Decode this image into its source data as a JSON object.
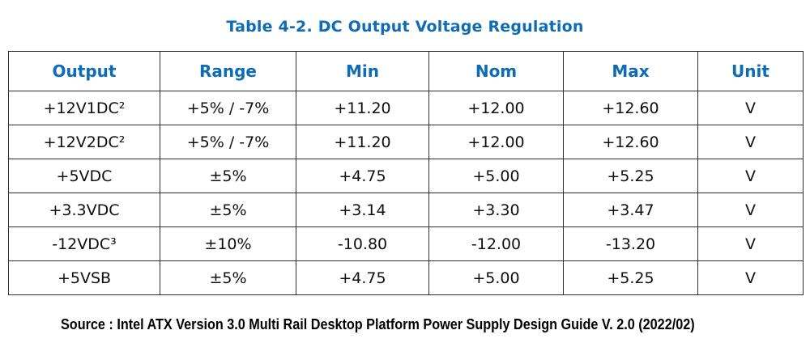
{
  "title": "Table 4-2. DC Output Voltage Regulation",
  "table": {
    "headers": [
      "Output",
      "Range",
      "Min",
      "Nom",
      "Max",
      "Unit"
    ],
    "rows": [
      [
        "+12V1DC²",
        "+5% / -7%",
        "+11.20",
        "+12.00",
        "+12.60",
        "V"
      ],
      [
        "+12V2DC²",
        "+5% / -7%",
        "+11.20",
        "+12.00",
        "+12.60",
        "V"
      ],
      [
        "+5VDC",
        "±5%",
        "+4.75",
        "+5.00",
        "+5.25",
        "V"
      ],
      [
        "+3.3VDC",
        "±5%",
        "+3.14",
        "+3.30",
        "+3.47",
        "V"
      ],
      [
        "-12VDC³",
        "±10%",
        "-10.80",
        "-12.00",
        "-13.20",
        "V"
      ],
      [
        "+5VSB",
        "±5%",
        "+4.75",
        "+5.00",
        "+5.25",
        "V"
      ]
    ]
  },
  "source": "Source : Intel ATX Version 3.0 Multi Rail Desktop Platform Power Supply Design Guide V. 2.0 (2022/02)",
  "colors": {
    "accent_blue": "#0d6cb5",
    "body_text": "#0f0f0f",
    "border": "#2f2f2f",
    "background": "#ffffff"
  }
}
